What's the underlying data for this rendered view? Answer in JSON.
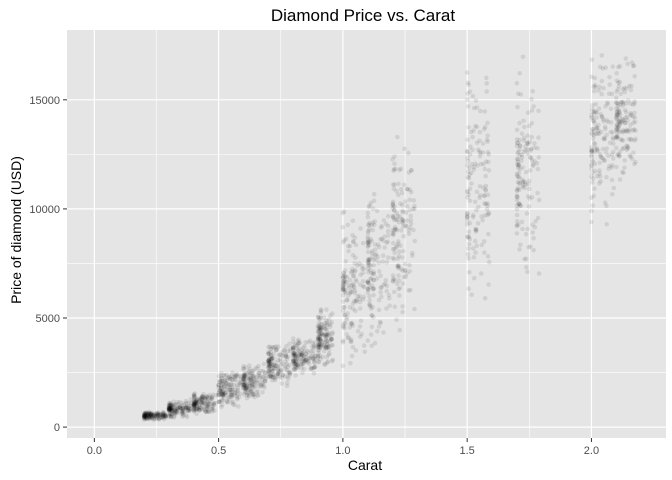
{
  "chart_data": {
    "type": "scatter",
    "title": "Diamond Price vs. Carat",
    "xlabel": "Carat",
    "ylabel": "Price of diamond (USD)",
    "xlim": [
      -0.11,
      2.3
    ],
    "ylim": [
      -500,
      18200
    ],
    "xticks": [
      0.0,
      0.5,
      1.0,
      1.5,
      2.0
    ],
    "xtick_labels": [
      "0.0",
      "0.5",
      "1.0",
      "1.5",
      "2.0"
    ],
    "yticks": [
      0,
      5000,
      10000,
      15000
    ],
    "ytick_labels": [
      "0",
      "5000",
      "10000",
      "15000"
    ],
    "grid": true,
    "panel_background": "#e5e5e5",
    "grid_color": "#ffffff",
    "point_color": "#000000",
    "point_opacity": 0.03,
    "clusters": [
      {
        "carat": [
          0.2,
          0.29
        ],
        "price": [
          330,
          700
        ]
      },
      {
        "carat": [
          0.3,
          0.39
        ],
        "price": [
          400,
          1300
        ]
      },
      {
        "carat": [
          0.4,
          0.49
        ],
        "price": [
          600,
          1600
        ]
      },
      {
        "carat": [
          0.5,
          0.59
        ],
        "price": [
          900,
          2600
        ]
      },
      {
        "carat": [
          0.6,
          0.69
        ],
        "price": [
          1200,
          3000
        ]
      },
      {
        "carat": [
          0.7,
          0.79
        ],
        "price": [
          1800,
          3900
        ]
      },
      {
        "carat": [
          0.8,
          0.89
        ],
        "price": [
          2300,
          4200
        ]
      },
      {
        "carat": [
          0.9,
          0.96
        ],
        "price": [
          2800,
          5500
        ]
      },
      {
        "carat": [
          1.0,
          1.09
        ],
        "price": [
          2700,
          10000
        ]
      },
      {
        "carat": [
          1.1,
          1.19
        ],
        "price": [
          3500,
          11000
        ]
      },
      {
        "carat": [
          1.2,
          1.29
        ],
        "price": [
          4000,
          14000
        ]
      },
      {
        "carat": [
          1.5,
          1.59
        ],
        "price": [
          5000,
          17000
        ]
      },
      {
        "carat": [
          1.7,
          1.79
        ],
        "price": [
          6500,
          17000
        ]
      },
      {
        "carat": [
          2.0,
          2.09
        ],
        "price": [
          9000,
          17300
        ]
      },
      {
        "carat": [
          2.1,
          2.18
        ],
        "price": [
          11000,
          17200
        ]
      }
    ]
  }
}
